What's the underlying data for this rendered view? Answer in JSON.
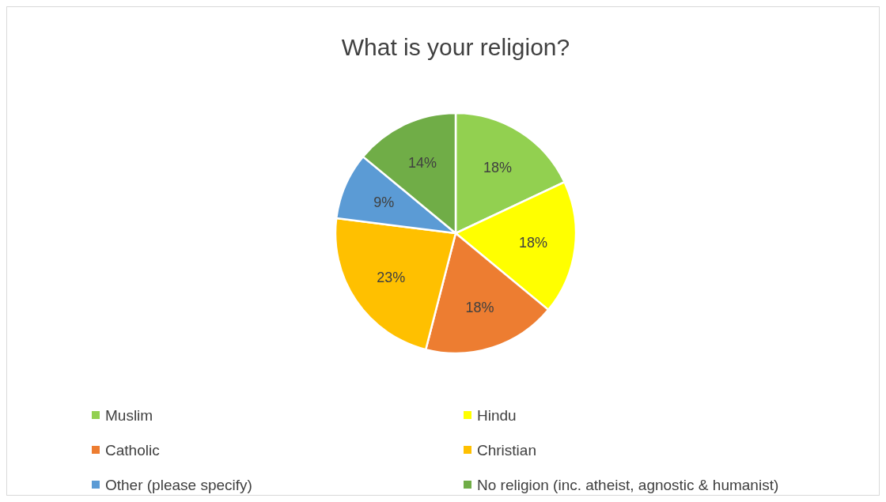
{
  "chart_data": {
    "type": "pie",
    "title": "What is your religion?",
    "categories": [
      "Muslim",
      "Hindu",
      "Catholic",
      "Christian",
      "Other (please specify)",
      "No religion (inc. atheist, agnostic & humanist)"
    ],
    "values": [
      18,
      18,
      18,
      23,
      9,
      14
    ],
    "colors": [
      "#92d050",
      "#ffff00",
      "#ed7d31",
      "#ffc000",
      "#5b9bd5",
      "#70ad47"
    ],
    "value_labels": [
      "18%",
      "18%",
      "18%",
      "23%",
      "9%",
      "14%"
    ],
    "legend": "bottom"
  }
}
